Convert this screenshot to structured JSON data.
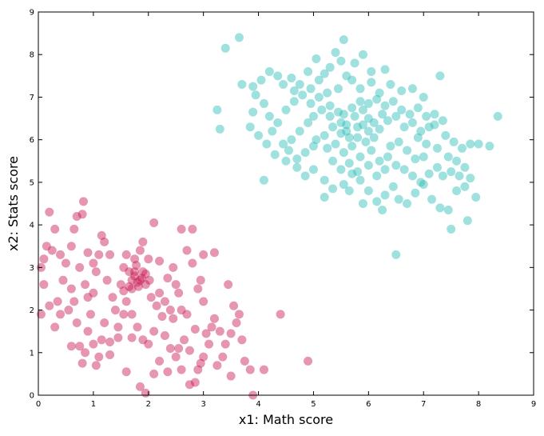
{
  "chart_data": {
    "type": "scatter",
    "xlabel": "x1: Math score",
    "ylabel": "x2: Stats score",
    "xlim": [
      0,
      9
    ],
    "ylim": [
      0,
      9
    ],
    "x_ticks": [
      "0",
      "1",
      "2",
      "3",
      "4",
      "5",
      "6",
      "7",
      "8",
      "9"
    ],
    "y_ticks": [
      "0",
      "1",
      "2",
      "3",
      "4",
      "5",
      "6",
      "7",
      "8",
      "9"
    ],
    "grid": false,
    "legend": "none",
    "series": [
      {
        "color": "#c8174f",
        "points": [
          [
            0.05,
            3.0
          ],
          [
            0.15,
            3.5
          ],
          [
            0.2,
            4.3
          ],
          [
            0.3,
            3.9
          ],
          [
            0.1,
            3.2
          ],
          [
            0.25,
            3.4
          ],
          [
            0.1,
            2.6
          ],
          [
            0.2,
            2.1
          ],
          [
            0.05,
            1.9
          ],
          [
            0.35,
            2.2
          ],
          [
            0.5,
            3.1
          ],
          [
            0.6,
            3.5
          ],
          [
            0.65,
            3.9
          ],
          [
            0.7,
            4.2
          ],
          [
            0.8,
            4.25
          ],
          [
            0.82,
            4.55
          ],
          [
            0.75,
            3.0
          ],
          [
            0.85,
            2.6
          ],
          [
            0.9,
            2.3
          ],
          [
            0.6,
            2.5
          ],
          [
            0.55,
            2.0
          ],
          [
            0.7,
            1.7
          ],
          [
            0.9,
            1.5
          ],
          [
            0.6,
            1.15
          ],
          [
            0.75,
            1.15
          ],
          [
            0.95,
            1.9
          ],
          [
            1.0,
            2.4
          ],
          [
            1.05,
            2.9
          ],
          [
            1.1,
            3.3
          ],
          [
            1.15,
            3.75
          ],
          [
            1.2,
            3.6
          ],
          [
            1.3,
            3.3
          ],
          [
            1.25,
            2.7
          ],
          [
            1.35,
            2.3
          ],
          [
            1.4,
            2.0
          ],
          [
            1.2,
            1.7
          ],
          [
            1.15,
            1.3
          ],
          [
            1.1,
            0.9
          ],
          [
            1.05,
            0.7
          ],
          [
            1.3,
            1.25
          ],
          [
            1.45,
            1.6
          ],
          [
            1.5,
            2.6
          ],
          [
            1.55,
            3.0
          ],
          [
            1.6,
            3.3
          ],
          [
            1.65,
            2.9
          ],
          [
            1.7,
            2.5
          ],
          [
            1.75,
            2.8
          ],
          [
            1.8,
            2.65
          ],
          [
            1.85,
            2.7
          ],
          [
            1.9,
            2.9
          ],
          [
            1.95,
            2.6
          ],
          [
            1.75,
            3.2
          ],
          [
            1.85,
            3.4
          ],
          [
            1.6,
            2.2
          ],
          [
            1.7,
            1.9
          ],
          [
            1.8,
            1.6
          ],
          [
            1.9,
            1.3
          ],
          [
            2.0,
            1.2
          ],
          [
            2.1,
            1.5
          ],
          [
            2.05,
            2.3
          ],
          [
            2.15,
            2.1
          ],
          [
            2.2,
            2.4
          ],
          [
            2.3,
            2.2
          ],
          [
            2.4,
            2.0
          ],
          [
            2.45,
            1.8
          ],
          [
            2.5,
            2.6
          ],
          [
            2.55,
            2.4
          ],
          [
            2.6,
            2.0
          ],
          [
            2.7,
            1.9
          ],
          [
            2.3,
            1.4
          ],
          [
            2.4,
            1.1
          ],
          [
            2.5,
            0.9
          ],
          [
            2.2,
            0.8
          ],
          [
            2.1,
            0.5
          ],
          [
            2.35,
            0.55
          ],
          [
            2.6,
            0.6
          ],
          [
            2.75,
            0.25
          ],
          [
            2.85,
            0.3
          ],
          [
            2.9,
            0.6
          ],
          [
            3.0,
            0.9
          ],
          [
            3.1,
            1.2
          ],
          [
            3.15,
            1.6
          ],
          [
            3.2,
            1.8
          ],
          [
            3.3,
            1.5
          ],
          [
            3.4,
            1.2
          ],
          [
            3.5,
            1.45
          ],
          [
            3.6,
            1.7
          ],
          [
            3.65,
            1.9
          ],
          [
            3.55,
            2.1
          ],
          [
            3.7,
            1.3
          ],
          [
            3.75,
            0.8
          ],
          [
            3.85,
            0.6
          ],
          [
            3.5,
            0.45
          ],
          [
            3.9,
            0.0
          ],
          [
            4.4,
            1.9
          ],
          [
            4.9,
            0.8
          ],
          [
            4.1,
            0.6
          ],
          [
            3.0,
            2.2
          ],
          [
            2.9,
            2.5
          ],
          [
            2.95,
            2.7
          ],
          [
            2.8,
            3.1
          ],
          [
            2.7,
            3.4
          ],
          [
            2.6,
            3.9
          ],
          [
            2.8,
            3.9
          ],
          [
            3.0,
            3.3
          ],
          [
            3.2,
            3.35
          ],
          [
            2.1,
            4.05
          ],
          [
            3.45,
            2.6
          ],
          [
            1.65,
            2.55
          ],
          [
            1.55,
            1.9
          ],
          [
            1.45,
            1.35
          ],
          [
            1.3,
            0.95
          ],
          [
            1.6,
            0.55
          ],
          [
            1.85,
            0.2
          ],
          [
            1.95,
            0.05
          ],
          [
            0.85,
            1.0
          ],
          [
            1.0,
            1.2
          ],
          [
            0.8,
            0.75
          ],
          [
            2.25,
            1.85
          ],
          [
            2.35,
            2.75
          ],
          [
            2.45,
            3.0
          ],
          [
            2.2,
            3.15
          ],
          [
            2.0,
            3.2
          ],
          [
            1.9,
            3.6
          ],
          [
            1.0,
            3.1
          ],
          [
            0.9,
            3.35
          ],
          [
            0.4,
            3.3
          ],
          [
            0.45,
            2.7
          ],
          [
            0.3,
            1.6
          ],
          [
            0.4,
            1.9
          ],
          [
            0.65,
            2.2
          ],
          [
            1.55,
            2.45
          ],
          [
            1.7,
            1.35
          ],
          [
            2.65,
            1.3
          ],
          [
            2.85,
            1.55
          ],
          [
            3.05,
            1.45
          ],
          [
            2.55,
            1.1
          ],
          [
            2.75,
            1.05
          ],
          [
            2.95,
            0.75
          ],
          [
            3.25,
            0.7
          ],
          [
            3.35,
            0.9
          ],
          [
            1.75,
            2.9
          ],
          [
            1.88,
            2.75
          ],
          [
            1.82,
            2.55
          ],
          [
            1.95,
            2.85
          ],
          [
            2.02,
            2.7
          ],
          [
            1.7,
            2.7
          ],
          [
            1.78,
            3.05
          ]
        ]
      },
      {
        "color": "#28bdb6",
        "points": [
          [
            3.4,
            8.15
          ],
          [
            3.65,
            8.4
          ],
          [
            5.55,
            8.35
          ],
          [
            5.4,
            8.05
          ],
          [
            5.05,
            7.9
          ],
          [
            5.3,
            7.7
          ],
          [
            5.6,
            7.5
          ],
          [
            5.9,
            8.0
          ],
          [
            4.2,
            7.6
          ],
          [
            4.35,
            7.5
          ],
          [
            4.6,
            7.45
          ],
          [
            4.75,
            7.3
          ],
          [
            4.9,
            7.6
          ],
          [
            5.1,
            7.4
          ],
          [
            5.25,
            7.1
          ],
          [
            5.45,
            7.2
          ],
          [
            5.7,
            7.4
          ],
          [
            5.85,
            7.2
          ],
          [
            6.05,
            7.35
          ],
          [
            6.2,
            7.1
          ],
          [
            6.4,
            7.3
          ],
          [
            6.6,
            7.15
          ],
          [
            6.8,
            7.2
          ],
          [
            7.0,
            7.0
          ],
          [
            7.3,
            7.5
          ],
          [
            3.7,
            7.3
          ],
          [
            3.9,
            7.25
          ],
          [
            3.95,
            7.05
          ],
          [
            4.1,
            6.85
          ],
          [
            4.2,
            6.55
          ],
          [
            3.25,
            6.7
          ],
          [
            3.3,
            6.25
          ],
          [
            3.85,
            6.3
          ],
          [
            4.0,
            6.1
          ],
          [
            4.15,
            5.9
          ],
          [
            4.3,
            5.65
          ],
          [
            4.45,
            5.9
          ],
          [
            4.6,
            6.0
          ],
          [
            4.75,
            6.2
          ],
          [
            4.9,
            6.4
          ],
          [
            5.0,
            6.55
          ],
          [
            5.15,
            6.7
          ],
          [
            5.3,
            6.8
          ],
          [
            5.45,
            6.65
          ],
          [
            5.5,
            6.4
          ],
          [
            5.6,
            6.2
          ],
          [
            5.75,
            6.55
          ],
          [
            5.9,
            6.35
          ],
          [
            6.0,
            6.2
          ],
          [
            6.1,
            6.4
          ],
          [
            6.25,
            6.6
          ],
          [
            6.35,
            6.45
          ],
          [
            6.5,
            6.55
          ],
          [
            6.65,
            6.3
          ],
          [
            6.8,
            6.4
          ],
          [
            6.95,
            6.2
          ],
          [
            7.1,
            6.3
          ],
          [
            7.2,
            6.35
          ],
          [
            7.4,
            6.1
          ],
          [
            7.55,
            5.95
          ],
          [
            7.7,
            5.8
          ],
          [
            7.85,
            5.9
          ],
          [
            8.0,
            5.9
          ],
          [
            8.2,
            5.85
          ],
          [
            8.35,
            6.55
          ],
          [
            4.1,
            5.05
          ],
          [
            4.5,
            5.5
          ],
          [
            4.7,
            5.35
          ],
          [
            4.85,
            5.15
          ],
          [
            5.0,
            5.3
          ],
          [
            5.2,
            5.05
          ],
          [
            5.35,
            4.85
          ],
          [
            5.55,
            4.95
          ],
          [
            5.7,
            5.2
          ],
          [
            5.85,
            5.05
          ],
          [
            6.0,
            4.8
          ],
          [
            6.15,
            4.55
          ],
          [
            6.3,
            4.7
          ],
          [
            6.45,
            4.9
          ],
          [
            6.55,
            4.6
          ],
          [
            6.7,
            4.5
          ],
          [
            6.85,
            4.75
          ],
          [
            7.0,
            4.95
          ],
          [
            7.15,
            4.6
          ],
          [
            7.3,
            4.4
          ],
          [
            7.45,
            4.35
          ],
          [
            7.6,
            4.8
          ],
          [
            7.75,
            4.9
          ],
          [
            7.95,
            4.65
          ],
          [
            7.8,
            4.1
          ],
          [
            7.5,
            3.9
          ],
          [
            6.5,
            3.3
          ],
          [
            5.2,
            4.65
          ],
          [
            5.65,
            4.8
          ],
          [
            5.9,
            4.5
          ],
          [
            6.25,
            4.35
          ],
          [
            5.05,
            6.0
          ],
          [
            5.25,
            5.8
          ],
          [
            5.4,
            5.9
          ],
          [
            5.55,
            5.7
          ],
          [
            5.7,
            5.85
          ],
          [
            5.85,
            5.6
          ],
          [
            6.05,
            5.75
          ],
          [
            6.2,
            5.5
          ],
          [
            6.35,
            5.6
          ],
          [
            6.5,
            5.4
          ],
          [
            6.65,
            5.3
          ],
          [
            6.8,
            5.15
          ],
          [
            6.95,
            5.0
          ],
          [
            7.1,
            5.2
          ],
          [
            7.25,
            5.35
          ],
          [
            7.35,
            5.15
          ],
          [
            6.1,
            6.05
          ],
          [
            5.95,
            5.95
          ],
          [
            5.8,
            6.3
          ],
          [
            5.65,
            6.05
          ],
          [
            5.5,
            6.15
          ],
          [
            5.35,
            6.3
          ],
          [
            5.2,
            6.1
          ],
          [
            5.35,
            5.5
          ],
          [
            5.5,
            5.3
          ],
          [
            5.65,
            5.45
          ],
          [
            5.8,
            5.25
          ],
          [
            6.0,
            5.4
          ],
          [
            6.15,
            5.15
          ],
          [
            6.3,
            5.3
          ],
          [
            6.4,
            5.85
          ],
          [
            6.55,
            5.95
          ],
          [
            6.7,
            5.75
          ],
          [
            6.85,
            5.55
          ],
          [
            7.0,
            5.6
          ],
          [
            4.35,
            6.4
          ],
          [
            4.5,
            6.7
          ],
          [
            4.65,
            6.9
          ],
          [
            4.8,
            7.05
          ],
          [
            4.95,
            6.85
          ],
          [
            5.1,
            7.0
          ],
          [
            5.7,
            6.75
          ],
          [
            5.85,
            6.9
          ],
          [
            6.0,
            6.85
          ],
          [
            6.15,
            6.95
          ],
          [
            6.3,
            6.8
          ],
          [
            6.45,
            6.9
          ],
          [
            6.6,
            6.7
          ],
          [
            6.75,
            6.6
          ],
          [
            6.9,
            6.75
          ],
          [
            7.05,
            6.55
          ],
          [
            7.2,
            6.6
          ],
          [
            7.35,
            6.45
          ],
          [
            4.55,
            5.75
          ],
          [
            4.7,
            5.55
          ],
          [
            4.85,
            5.7
          ],
          [
            5.0,
            5.85
          ],
          [
            4.25,
            6.2
          ],
          [
            3.9,
            6.65
          ],
          [
            4.05,
            7.4
          ],
          [
            4.45,
            7.3
          ],
          [
            4.65,
            7.15
          ],
          [
            6.05,
            7.6
          ],
          [
            6.3,
            7.65
          ],
          [
            5.75,
            7.8
          ],
          [
            5.5,
            7.85
          ],
          [
            5.2,
            7.55
          ],
          [
            4.95,
            7.2
          ],
          [
            6.9,
            6.05
          ],
          [
            7.05,
            5.9
          ],
          [
            7.25,
            5.8
          ],
          [
            7.45,
            5.6
          ],
          [
            7.6,
            5.5
          ],
          [
            7.75,
            5.35
          ],
          [
            7.85,
            5.1
          ],
          [
            7.65,
            5.15
          ],
          [
            7.5,
            5.25
          ],
          [
            5.3,
            6.55
          ],
          [
            5.55,
            6.6
          ],
          [
            5.9,
            6.7
          ],
          [
            6.2,
            6.25
          ],
          [
            6.0,
            6.5
          ],
          [
            5.8,
            6.05
          ],
          [
            5.6,
            6.35
          ]
        ]
      }
    ]
  }
}
